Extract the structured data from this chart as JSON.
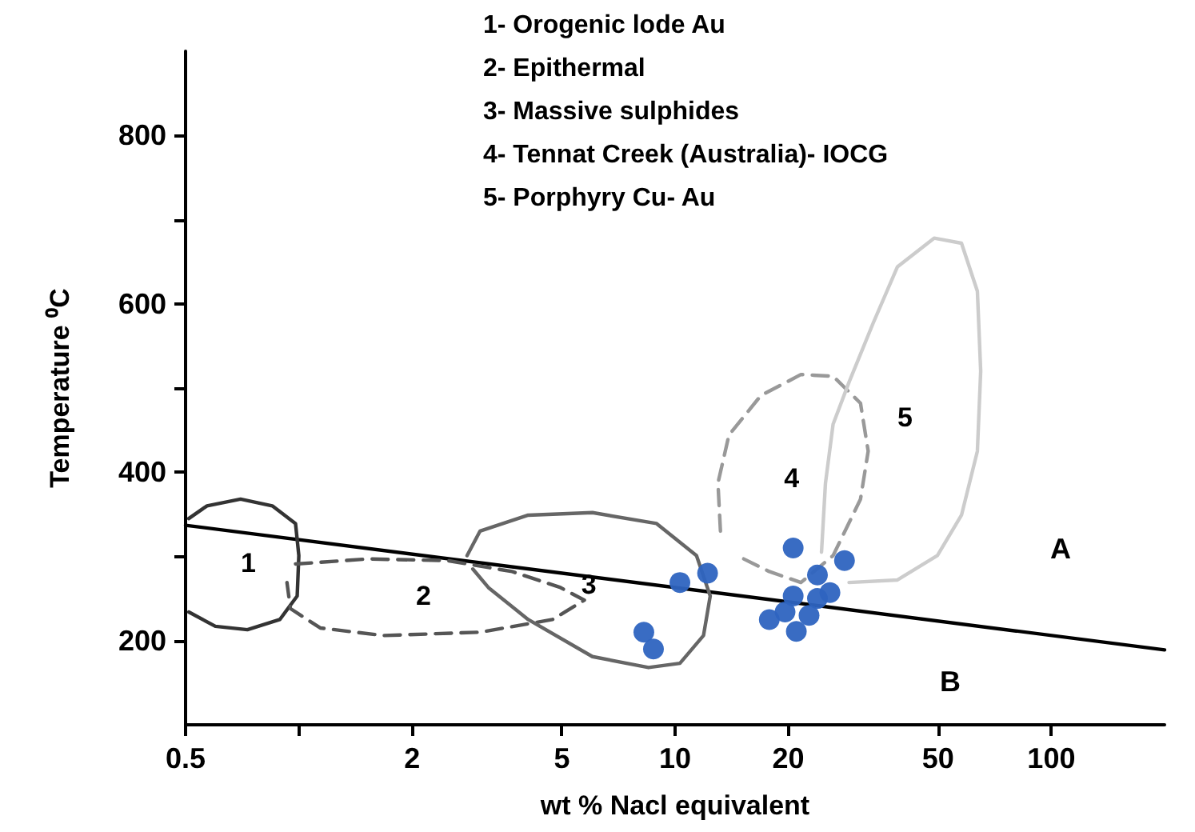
{
  "chart_data": {
    "type": "scatter",
    "xlabel": "wt % Nacl equivalent",
    "ylabel": "Temperature ⁰C",
    "log": "x",
    "grid": false,
    "xlim": [
      0.5,
      200
    ],
    "xticks": [
      0.5,
      {
        "value": 1,
        "label": null
      },
      2,
      5,
      10,
      20,
      50,
      100
    ],
    "ylim": [
      100,
      900
    ],
    "yticks": [
      200,
      {
        "value": 300,
        "label": null
      },
      400,
      {
        "value": 500,
        "label": null
      },
      600,
      {
        "value": 700,
        "label": null
      },
      800
    ],
    "series": [
      {
        "type": "line",
        "marker": "none",
        "line_style": "solid",
        "color": "#000000",
        "x": [
          0.5,
          200
        ],
        "values": [
          337,
          189
        ]
      },
      {
        "type": "line",
        "marker": "none",
        "line_style": "solid",
        "color": "#333333",
        "x": [
          0.51,
          0.57,
          0.7,
          0.85,
          0.98,
          1.0,
          0.99,
          0.89,
          0.73,
          0.6,
          0.51
        ],
        "values": [
          345,
          360,
          368,
          360,
          339,
          301,
          253,
          225,
          213,
          217,
          234
        ]
      },
      {
        "type": "line",
        "marker": "none",
        "line_style": "dashed",
        "color": "#555555",
        "x": [
          0.98,
          1.53,
          2.49,
          3.69,
          4.96,
          5.74,
          4.72,
          3.03,
          1.68,
          1.14,
          0.95,
          0.93
        ],
        "values": [
          291,
          297,
          295,
          282,
          263,
          248,
          225,
          210,
          206,
          215,
          238,
          269
        ]
      },
      {
        "type": "line",
        "marker": "none",
        "line_style": "solid",
        "color": "#666666",
        "x": [
          2.8,
          3.03,
          4.07,
          6.03,
          8.93,
          11.4,
          12.4,
          11.9,
          10.3,
          8.5,
          6.03,
          4.07,
          3.19,
          2.9
        ],
        "values": [
          301,
          330,
          349,
          352,
          339,
          301,
          253,
          206,
          173,
          168,
          181,
          225,
          263,
          285
        ]
      },
      {
        "type": "line",
        "marker": "none",
        "line_style": "dashed",
        "color": "#999999",
        "x": [
          13.2,
          13.0,
          13.9,
          16.9,
          21.6,
          26.3,
          31.1,
          32.6,
          31.1,
          26.3,
          21.6,
          17.8,
          14.6
        ],
        "values": [
          330,
          387,
          444,
          491,
          516,
          514,
          482,
          425,
          368,
          301,
          269,
          282,
          301
        ]
      },
      {
        "type": "line",
        "marker": "none",
        "line_style": "solid",
        "color": "#cccccc",
        "x": [
          24.5,
          25.1,
          26.3,
          29.0,
          33.6,
          39.0,
          48.8,
          57.7,
          63.6,
          64.9,
          63.6,
          57.7,
          49.8,
          39.0,
          29.0
        ],
        "values": [
          305,
          387,
          457,
          507,
          577,
          644,
          678,
          672,
          615,
          520,
          425,
          349,
          301,
          272,
          269
        ]
      },
      {
        "marker": "circle",
        "color": "#2e64c0",
        "x": [
          10.3,
          12.2,
          8.26,
          8.76,
          20.6,
          28.2,
          23.9,
          20.6,
          23.9,
          19.6,
          22.7,
          17.8,
          21.0,
          25.8
        ],
        "values": [
          269,
          280,
          210,
          190,
          310,
          295,
          278,
          253,
          250,
          234,
          230,
          225,
          211,
          257
        ]
      }
    ],
    "annotations": [
      "1- Orogenic lode Au",
      "2- Epithermal",
      "3- Massive sulphides",
      "4- Tennat Creek (Australia)- IOCG",
      "5- Porphyry Cu- Au",
      "1",
      "2",
      "3",
      "4",
      "5",
      "A",
      "B"
    ]
  }
}
